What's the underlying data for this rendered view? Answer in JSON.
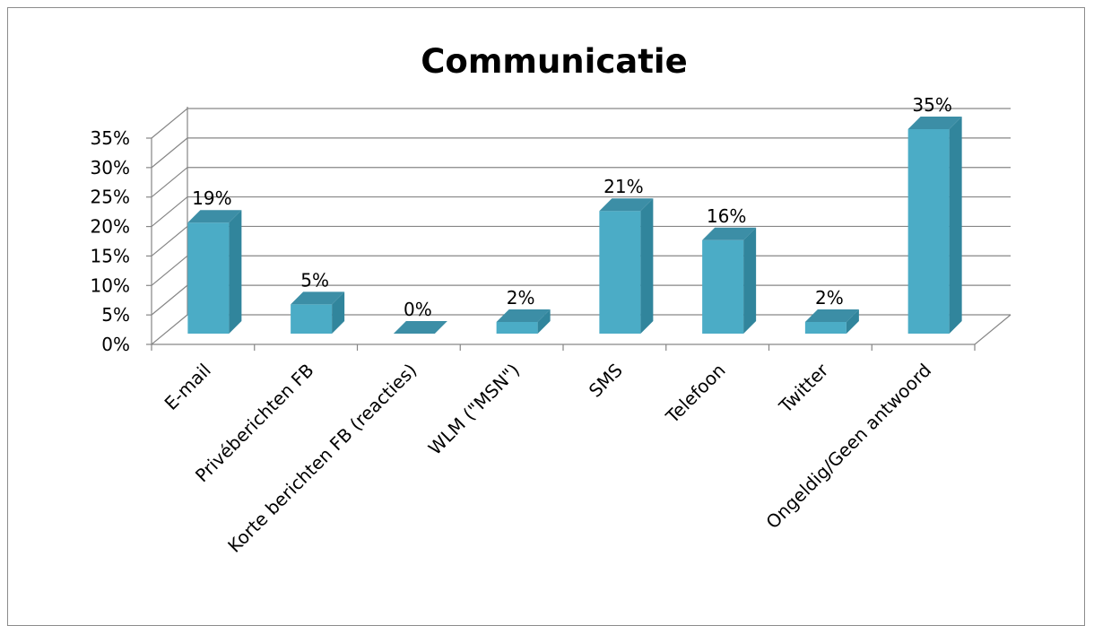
{
  "chart_data": {
    "type": "bar",
    "title": "Communicatie",
    "categories": [
      "E-mail",
      "Privéberichten FB",
      "Korte berichten FB (reacties)",
      "WLM (\"MSN\")",
      "SMS",
      "Telefoon",
      "Twitter",
      "Ongeldig/Geen antwoord"
    ],
    "values": [
      19,
      5,
      0,
      2,
      21,
      16,
      2,
      35
    ],
    "data_labels": [
      "19%",
      "5%",
      "0%",
      "2%",
      "21%",
      "16%",
      "2%",
      "35%"
    ],
    "ylim": [
      0,
      35
    ],
    "y_ticks": [
      "0%",
      "5%",
      "10%",
      "15%",
      "20%",
      "25%",
      "30%",
      "35%"
    ],
    "grid": true,
    "legend": "none",
    "three_d": true,
    "colors": {
      "bar_front": "#4bacc6",
      "bar_side": "#31859c",
      "bar_top": "#3c8ea6",
      "grid": "#868686"
    }
  }
}
